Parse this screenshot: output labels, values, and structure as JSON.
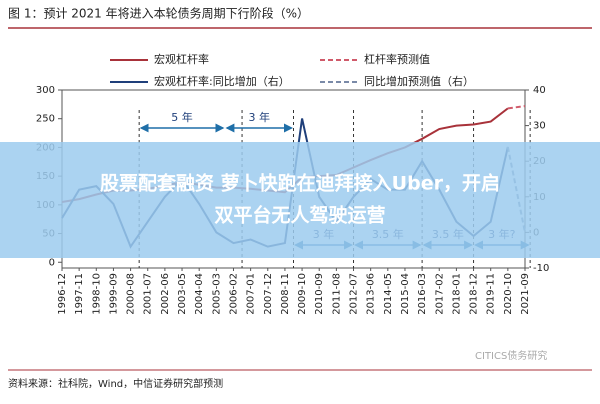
{
  "chart_data": {
    "type": "line",
    "title": "图 1：预计 2021 年将进入本轮债务周期下行阶段（%）",
    "categories": [
      "1996-12",
      "1997-11",
      "1998-10",
      "1999-09",
      "2000-08",
      "2001-07",
      "2002-06",
      "2003-05",
      "2004-04",
      "2005-03",
      "2006-02",
      "2007-01",
      "2007-12",
      "2008-11",
      "2009-10",
      "2010-09",
      "2011-08",
      "2012-07",
      "2013-06",
      "2014-05",
      "2015-04",
      "2016-03",
      "2017-02",
      "2018-01",
      "2018-12",
      "2019-11",
      "2020-10",
      "2021-09"
    ],
    "ylim": [
      -10,
      300
    ],
    "yticks": [
      0,
      50,
      100,
      150,
      200,
      250,
      300
    ],
    "y2lim": [
      -10,
      40
    ],
    "y2ticks": [
      -10,
      0,
      10,
      20,
      30,
      40
    ],
    "series": [
      {
        "name": "宏观杠杆率",
        "color": "#a8323a",
        "dash": false,
        "values": [
          105,
          110,
          118,
          125,
          125,
          128,
          133,
          140,
          135,
          130,
          130,
          128,
          125,
          122,
          148,
          150,
          152,
          165,
          178,
          190,
          200,
          215,
          232,
          238,
          240,
          245,
          268,
          null
        ]
      },
      {
        "name": "杠杆率预测值",
        "color": "#d05a6a",
        "dash": true,
        "values": [
          null,
          null,
          null,
          null,
          null,
          null,
          null,
          null,
          null,
          null,
          null,
          null,
          null,
          null,
          null,
          null,
          null,
          null,
          null,
          null,
          null,
          null,
          null,
          null,
          null,
          null,
          268,
          272
        ]
      },
      {
        "name": "宏观杠杆率:同比增加（右）",
        "color": "#1f3f7a",
        "dash": false,
        "axis": "y2",
        "values": [
          4,
          12,
          13,
          8,
          -4,
          3,
          10,
          15,
          8,
          0,
          -3,
          -2,
          -4,
          -3,
          32,
          10,
          3,
          10,
          15,
          12,
          12,
          20,
          12,
          3,
          -1,
          3,
          24,
          null
        ]
      },
      {
        "name": "同比增加预测值（右）",
        "color": "#7a8aa8",
        "dash": true,
        "axis": "y2",
        "values": [
          null,
          null,
          null,
          null,
          null,
          null,
          null,
          null,
          null,
          null,
          null,
          null,
          null,
          null,
          null,
          null,
          null,
          null,
          null,
          null,
          null,
          null,
          null,
          null,
          null,
          null,
          24,
          0
        ]
      }
    ],
    "annotations": [
      "5 年",
      "3 年",
      "3 年",
      "3.5 年",
      "3.5 年",
      "3 年?"
    ],
    "source": "资料来源：社科院，Wind，中信证券研究部预测",
    "watermark": "CITICS债务研究"
  },
  "overlay": {
    "headline": [
      "股票配套融资 萝卜快跑在迪拜接入Uber，开启",
      "双平台无人驾驶运营"
    ]
  }
}
